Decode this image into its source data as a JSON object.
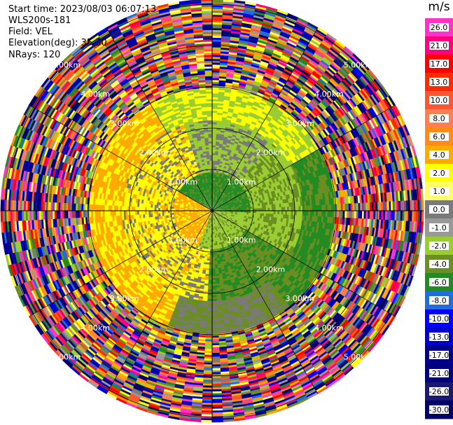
{
  "info": {
    "start_time": "Start time: 2023/08/03 06:07:13",
    "station": "WLS200s-181",
    "field": "Field: VEL",
    "elevation": "Elevation(deg): 35.30",
    "nrays": "NRays: 120"
  },
  "range_labels": [
    "1.00km",
    "2.00km",
    "3.00km",
    "4.00km",
    "5.00km"
  ],
  "colorbar": {
    "unit": "m/s",
    "levels": [
      "26.0",
      "21.0",
      "17.0",
      "13.0",
      "10.0",
      "8.0",
      "6.0",
      "4.0",
      "2.0",
      "1.0",
      "0.0",
      "-1.0",
      "-2.0",
      "-4.0",
      "-6.0",
      "-8.0",
      "-10.0",
      "-13.0",
      "-17.0",
      "-21.0",
      "-26.0",
      "-30.0"
    ],
    "colors": [
      "#ff33cc",
      "#ff0080",
      "#ff0000",
      "#ff2a00",
      "#ff5533",
      "#ff7f50",
      "#ff8c1a",
      "#ffaa00",
      "#ffff00",
      "#ffff66",
      "#7a7a7a",
      "#999999",
      "#9acd32",
      "#6b8e23",
      "#228b22",
      "#1e6fd9",
      "#0000ff",
      "#0000cd",
      "#00008b",
      "#000080",
      "#191970",
      "#000066"
    ]
  }
}
